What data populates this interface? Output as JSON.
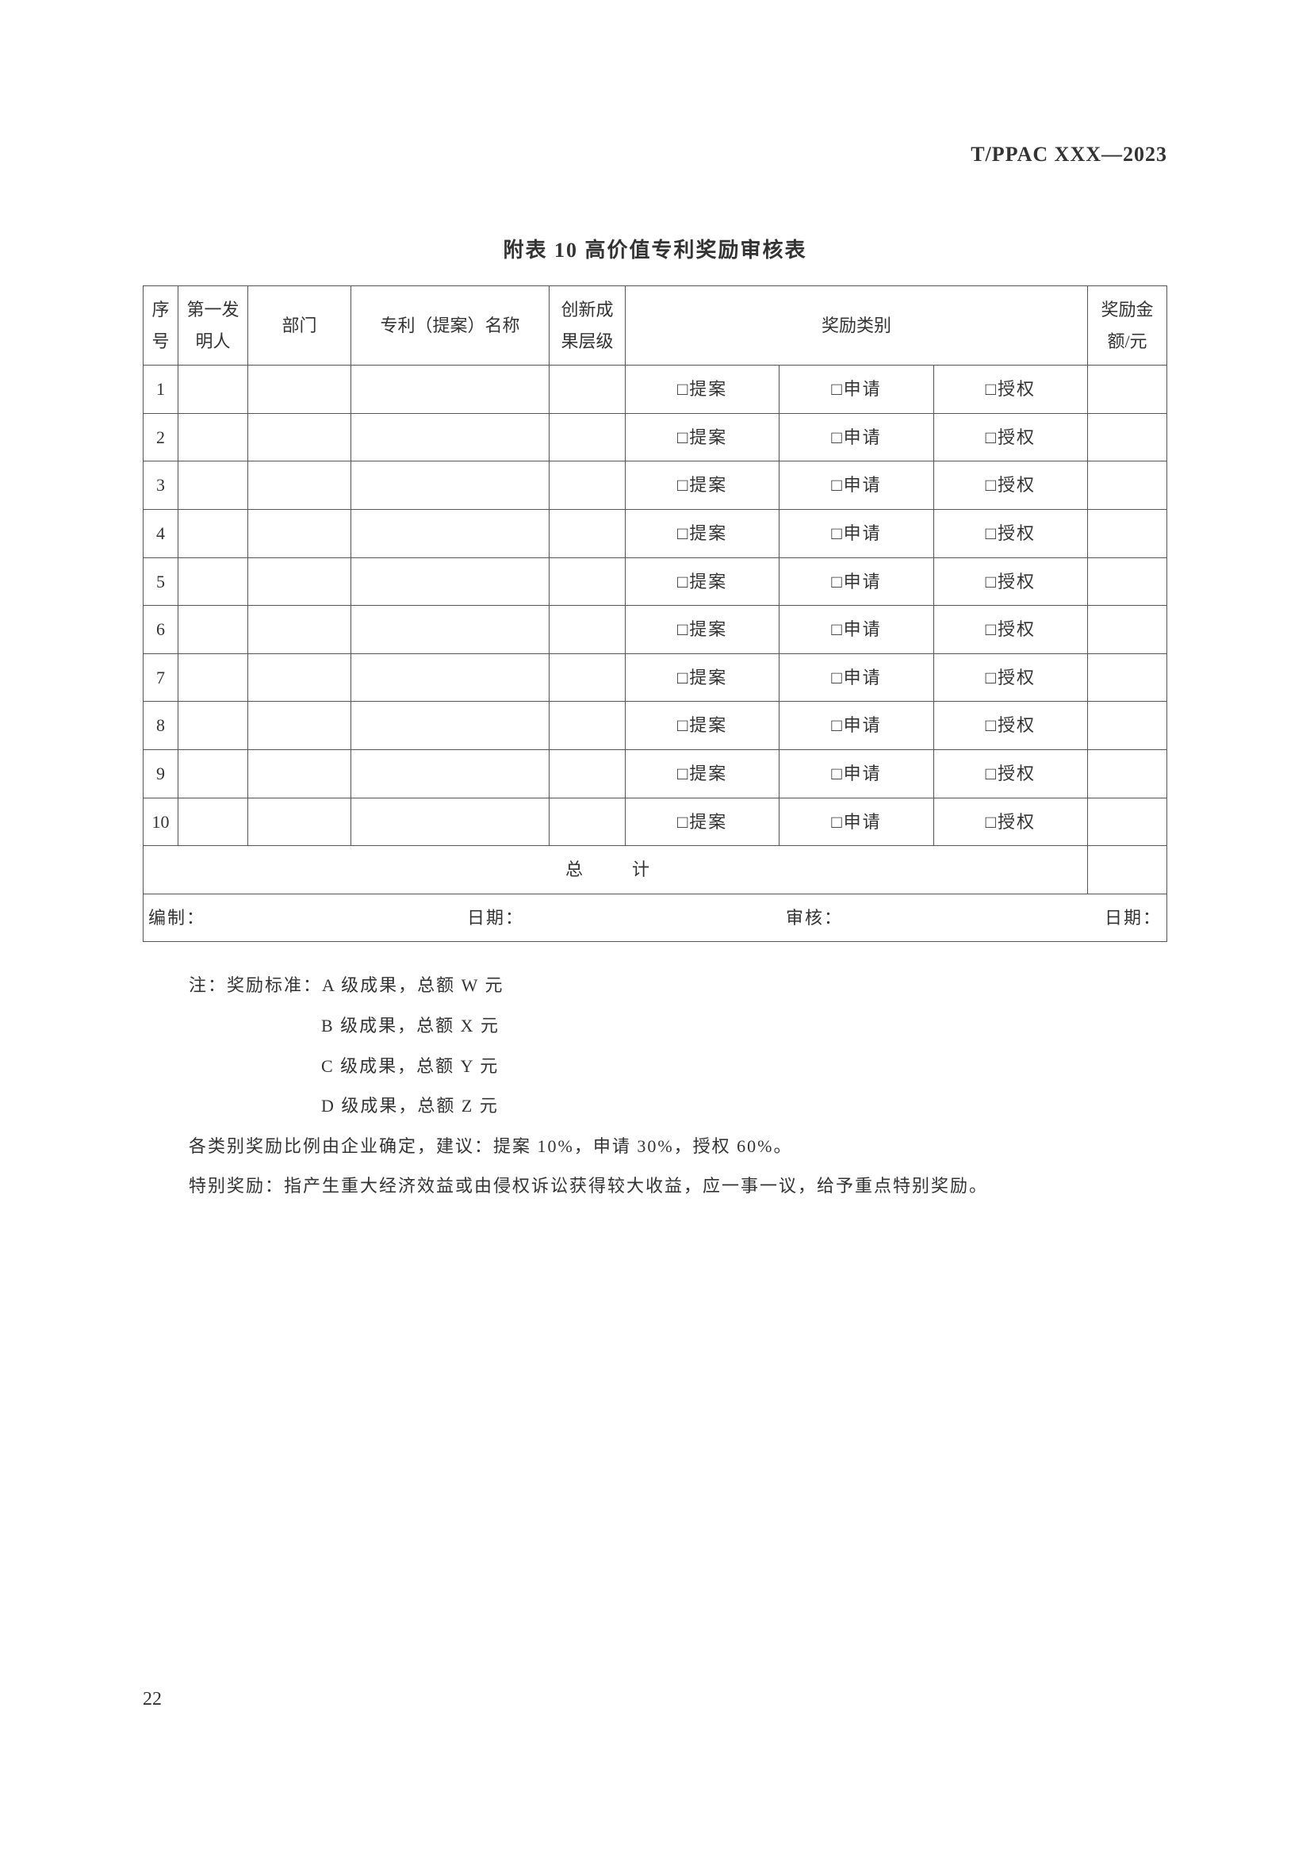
{
  "doc_header": "T/PPAC XXX—2023",
  "table_title": "附表 10 高价值专利奖励审核表",
  "columns": {
    "seq": "序号",
    "inventor": "第一发明人",
    "dept": "部门",
    "patent_name": "专利（提案）名称",
    "level": "创新成果层级",
    "category": "奖励类别",
    "amount": "奖励金额/元"
  },
  "check_options": {
    "proposal": "□提案",
    "apply": "□申请",
    "grant": "□授权"
  },
  "rows": [
    {
      "seq": "1"
    },
    {
      "seq": "2"
    },
    {
      "seq": "3"
    },
    {
      "seq": "4"
    },
    {
      "seq": "5"
    },
    {
      "seq": "6"
    },
    {
      "seq": "7"
    },
    {
      "seq": "8"
    },
    {
      "seq": "9"
    },
    {
      "seq": "10"
    }
  ],
  "total_label": "总　计",
  "footer": {
    "compile": "编制：",
    "date": "日期：",
    "review": "审核：",
    "date2": "日期："
  },
  "notes": {
    "line1": "注：奖励标准：A 级成果，总额 W 元",
    "line2": "B 级成果，总额 X 元",
    "line3": "C 级成果，总额 Y 元",
    "line4": "D 级成果，总额 Z 元",
    "line5": "各类别奖励比例由企业确定，建议：提案 10%，申请 30%，授权 60%。",
    "line6": "特别奖励：指产生重大经济效益或由侵权诉讼获得较大收益，应一事一议，给予重点特别奖励。"
  },
  "page_number": "22",
  "colors": {
    "text": "#333333",
    "border": "#555555",
    "background": "#ffffff"
  },
  "typography": {
    "body_font": "SimSun",
    "body_size_pt": 16,
    "title_size_pt": 19,
    "title_weight": "bold"
  }
}
